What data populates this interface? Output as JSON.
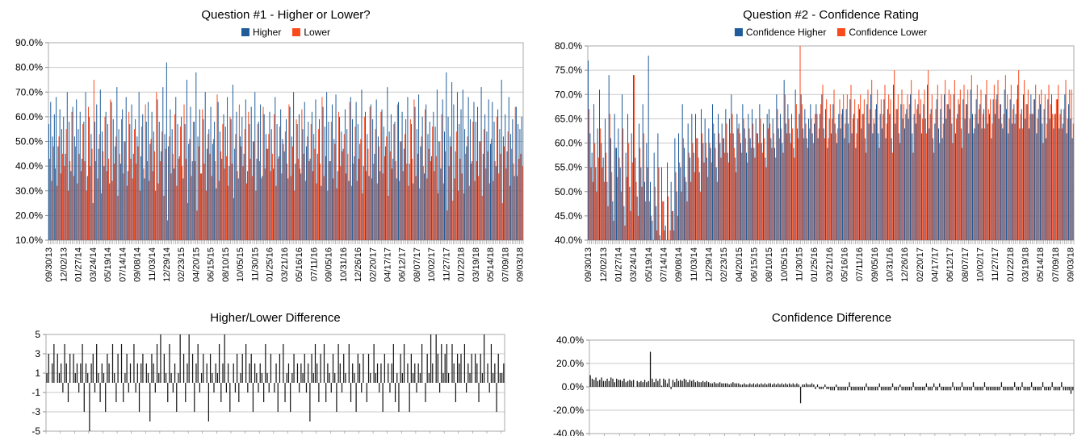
{
  "page": {
    "background": "#ffffff"
  },
  "colors": {
    "higher_series": "#1F5C99",
    "lower_series": "#F94A1D",
    "diff_series": "#141414",
    "gridline": "#c9c9c9",
    "plot_frame": "#a8a8a8",
    "tick_mark": "#8c8c8c",
    "text": "#000000"
  },
  "x_tick_labels": [
    "09/30/13",
    "12/02/13",
    "01/27/14",
    "03/24/14",
    "05/19/14",
    "07/14/14",
    "09/08/14",
    "11/03/14",
    "12/29/14",
    "02/23/15",
    "04/20/15",
    "06/15/15",
    "08/10/15",
    "10/05/15",
    "11/30/15",
    "01/25/16",
    "03/21/16",
    "05/16/16",
    "07/11/16",
    "09/05/16",
    "10/31/16",
    "12/26/16",
    "02/20/17",
    "04/17/17",
    "06/12/17",
    "08/07/17",
    "10/02/17",
    "11/27/17",
    "01/22/18",
    "03/19/18",
    "05/14/18",
    "07/09/18",
    "09/03/18"
  ],
  "x_tick_every_n_bars": 8,
  "chart_data": [
    {
      "type": "bar",
      "variant": "grouped",
      "title": "Question #1 - Higher or Lower?",
      "legend_position": "top",
      "grid": true,
      "ylim": [
        10,
        90
      ],
      "yticks": [
        90,
        80,
        70,
        60,
        50,
        40,
        30,
        20,
        10
      ],
      "ytick_format": "percent_1dp",
      "x_is_weekly_dates": true,
      "series": [
        {
          "name": "Higher",
          "color_key": "higher_series",
          "unit": "%",
          "values": [
            57,
            66,
            52,
            61,
            68,
            48,
            63,
            55,
            60,
            45,
            70,
            58,
            38,
            64,
            52,
            67,
            55,
            62,
            43,
            58,
            70,
            36,
            60,
            53,
            25,
            58,
            65,
            47,
            71,
            54,
            40,
            62,
            57,
            33,
            66,
            59,
            48,
            72,
            55,
            41,
            63,
            50,
            68,
            38,
            57,
            65,
            45,
            59,
            52,
            70,
            44,
            61,
            35,
            58,
            66,
            49,
            62,
            54,
            30,
            67,
            58,
            46,
            72,
            53,
            82,
            48,
            63,
            55,
            39,
            68,
            57,
            44,
            60,
            35,
            57,
            75,
            49,
            64,
            42,
            58,
            78,
            52,
            63,
            37,
            59,
            70,
            47,
            55,
            64,
            49,
            58,
            31,
            66,
            54,
            43,
            61,
            56,
            68,
            40,
            59,
            73,
            47,
            62,
            35,
            52,
            60,
            45,
            67,
            38,
            57,
            64,
            50,
            70,
            43,
            58,
            65,
            36,
            61,
            53,
            47,
            62,
            55,
            39,
            68,
            57,
            44,
            63,
            51,
            46,
            59,
            35,
            64,
            52,
            70,
            41,
            57,
            61,
            37,
            55,
            66,
            48,
            58,
            43,
            62,
            53,
            67,
            45,
            59,
            32,
            64,
            56,
            70,
            58,
            42,
            65,
            51,
            69,
            38,
            60,
            54,
            47,
            63,
            55,
            34,
            68,
            59,
            44,
            66,
            57,
            49,
            71,
            40,
            62,
            53,
            36,
            65,
            59,
            45,
            67,
            52,
            38,
            63,
            56,
            48,
            72,
            54,
            61,
            43,
            58,
            35,
            66,
            50,
            62,
            47,
            59,
            68,
            41,
            57,
            33,
            64,
            55,
            69,
            48,
            60,
            37,
            65,
            53,
            58,
            44,
            62,
            56,
            71,
            50,
            39,
            67,
            54,
            78,
            60,
            52,
            74,
            65,
            46,
            70,
            57,
            63,
            71,
            55,
            48,
            68,
            59,
            42,
            66,
            58,
            64,
            50,
            72,
            45,
            61,
            54,
            67,
            49,
            66,
            58,
            40,
            63,
            55,
            75,
            52,
            61,
            46,
            68,
            53,
            59,
            36,
            64,
            57,
            55,
            60
          ]
        },
        {
          "name": "Lower",
          "color_key": "lower_series",
          "unit": "%",
          "derived_from": "100 - Higher"
        }
      ]
    },
    {
      "type": "bar",
      "variant": "grouped",
      "title": "Question #2 - Confidence Rating",
      "legend_position": "top",
      "grid": true,
      "ylim": [
        40,
        80
      ],
      "yticks": [
        80,
        75,
        70,
        65,
        60,
        55,
        50,
        45,
        40
      ],
      "ytick_format": "percent_1dp",
      "x_is_weekly_dates": true,
      "series": [
        {
          "name": "Confidence Higher",
          "color_key": "higher_series",
          "unit": "%",
          "values": [
            77,
            62,
            58,
            68,
            55,
            63,
            71,
            60,
            57,
            65,
            52,
            74,
            61,
            48,
            66,
            59,
            63,
            55,
            70,
            47,
            58,
            66,
            51,
            62,
            74,
            57,
            49,
            64,
            55,
            68,
            52,
            60,
            78,
            52,
            44,
            58,
            47,
            62,
            41,
            55,
            48,
            43,
            56,
            40,
            52,
            46,
            61,
            50,
            62,
            55,
            68,
            59,
            52,
            64,
            57,
            66,
            58,
            66,
            61,
            54,
            67,
            60,
            65,
            57,
            63,
            59,
            68,
            62,
            55,
            66,
            60,
            64,
            61,
            67,
            58,
            65,
            70,
            62,
            57,
            66,
            64,
            60,
            68,
            63,
            58,
            66,
            61,
            67,
            59,
            65,
            62,
            68,
            60,
            64,
            57,
            66,
            67,
            61,
            65,
            59,
            70,
            63,
            66,
            60,
            73,
            64,
            68,
            62,
            66,
            59,
            71,
            63,
            66,
            70,
            63,
            67,
            61,
            65,
            68,
            62,
            64,
            68,
            61,
            66,
            70,
            63,
            67,
            59,
            65,
            62,
            68,
            64,
            60,
            66,
            63,
            67,
            61,
            67,
            64,
            69,
            62,
            66,
            59,
            65,
            67,
            63,
            66,
            61,
            68,
            64,
            70,
            62,
            64,
            68,
            62,
            66,
            63,
            69,
            61,
            67,
            66,
            61,
            72,
            64,
            67,
            62,
            68,
            65,
            63,
            67,
            65,
            70,
            62,
            66,
            64,
            68,
            66,
            62,
            68,
            65,
            72,
            63,
            67,
            61,
            64,
            69,
            63,
            67,
            61,
            70,
            65,
            68,
            67,
            64,
            70,
            62,
            66,
            68,
            63,
            69,
            65,
            68,
            62,
            71,
            66,
            63,
            69,
            64,
            68,
            63,
            67,
            70,
            64,
            66,
            61,
            69,
            66,
            70,
            65,
            68,
            63,
            71,
            67,
            62,
            69,
            64,
            68,
            66,
            72,
            63,
            67,
            70,
            65,
            68,
            63,
            70,
            66,
            69,
            62,
            67,
            68,
            64,
            67,
            61,
            69,
            65,
            70,
            63,
            66,
            69,
            63,
            67,
            64,
            70,
            62,
            68,
            65,
            61
          ]
        },
        {
          "name": "Confidence Lower",
          "color_key": "lower_series",
          "unit": "%",
          "values": [
            67,
            55,
            52,
            60,
            50,
            57,
            63,
            55,
            52,
            58,
            47,
            66,
            54,
            44,
            59,
            53,
            57,
            50,
            63,
            43,
            53,
            60,
            46,
            56,
            74,
            52,
            45,
            59,
            51,
            62,
            48,
            55,
            48,
            45,
            40,
            51,
            42,
            55,
            40,
            48,
            42,
            40,
            49,
            42,
            46,
            42,
            54,
            45,
            56,
            50,
            61,
            53,
            48,
            58,
            52,
            60,
            54,
            61,
            57,
            50,
            62,
            56,
            60,
            53,
            60,
            56,
            64,
            59,
            52,
            62,
            57,
            61,
            58,
            64,
            56,
            62,
            66,
            59,
            54,
            63,
            62,
            58,
            65,
            61,
            56,
            63,
            59,
            64,
            57,
            62,
            60,
            65,
            58,
            61,
            55,
            63,
            64,
            59,
            62,
            57,
            67,
            61,
            63,
            58,
            70,
            62,
            65,
            60,
            63,
            57,
            68,
            61,
            80,
            68,
            61,
            64,
            59,
            63,
            65,
            60,
            66,
            66,
            63,
            68,
            72,
            61,
            69,
            61,
            68,
            65,
            71,
            62,
            63,
            69,
            66,
            70,
            64,
            70,
            60,
            72,
            65,
            69,
            62,
            68,
            70,
            66,
            69,
            58,
            71,
            67,
            73,
            65,
            67,
            71,
            59,
            69,
            66,
            72,
            64,
            70,
            69,
            58,
            75,
            67,
            70,
            60,
            71,
            68,
            66,
            70,
            68,
            73,
            58,
            69,
            67,
            71,
            69,
            65,
            71,
            62,
            75,
            66,
            70,
            58,
            67,
            72,
            60,
            70,
            64,
            73,
            68,
            71,
            70,
            60,
            73,
            65,
            69,
            71,
            59,
            72,
            68,
            71,
            65,
            74,
            62,
            66,
            72,
            67,
            71,
            66,
            63,
            73,
            67,
            69,
            64,
            72,
            69,
            73,
            68,
            64,
            66,
            74,
            70,
            65,
            72,
            67,
            64,
            69,
            75,
            66,
            63,
            73,
            68,
            71,
            66,
            66,
            69,
            72,
            65,
            70,
            71,
            60,
            70,
            64,
            72,
            68,
            66,
            66,
            69,
            72,
            66,
            63,
            67,
            73,
            65,
            71,
            71,
            64
          ]
        }
      ]
    },
    {
      "type": "bar",
      "variant": "single",
      "title": "Higher/Lower Difference",
      "grid": true,
      "ylim": [
        -5,
        5
      ],
      "yticks": [
        5,
        3,
        1,
        -1,
        -3,
        -5
      ],
      "ytick_format": "integer",
      "x_is_weekly_dates": true,
      "series": [
        {
          "name": "Higher/Lower Difference",
          "color_key": "diff_series",
          "unit": "count",
          "values": [
            1,
            3,
            0,
            2,
            4,
            0,
            3,
            1,
            2,
            -1,
            4,
            2,
            -2,
            3,
            0,
            3,
            1,
            2,
            -1,
            2,
            4,
            -3,
            2,
            1,
            -5,
            2,
            3,
            -1,
            4,
            1,
            -2,
            2,
            1,
            -3,
            3,
            2,
            0,
            4,
            1,
            -2,
            3,
            0,
            4,
            -2,
            1,
            3,
            -1,
            2,
            0,
            4,
            -1,
            2,
            -3,
            2,
            3,
            0,
            2,
            1,
            -4,
            3,
            2,
            -1,
            4,
            1,
            5,
            0,
            3,
            1,
            -2,
            4,
            1,
            -1,
            2,
            -3,
            1,
            5,
            0,
            3,
            -2,
            2,
            5,
            0,
            3,
            -3,
            2,
            4,
            -1,
            1,
            3,
            0,
            2,
            -4,
            3,
            1,
            -1,
            2,
            1,
            4,
            -2,
            2,
            5,
            -1,
            2,
            -3,
            0,
            2,
            -1,
            3,
            -2,
            1,
            3,
            0,
            4,
            -1,
            2,
            3,
            -3,
            2,
            1,
            -1,
            2,
            1,
            -2,
            4,
            1,
            -1,
            3,
            0,
            -1,
            2,
            -3,
            3,
            0,
            4,
            -2,
            1,
            2,
            -3,
            1,
            3,
            0,
            2,
            -1,
            2,
            1,
            3,
            -1,
            2,
            -4,
            3,
            1,
            4,
            2,
            -2,
            3,
            0,
            4,
            -2,
            2,
            1,
            -1,
            3,
            1,
            -3,
            4,
            2,
            -1,
            3,
            1,
            0,
            4,
            -2,
            2,
            1,
            -3,
            3,
            2,
            -1,
            3,
            0,
            -2,
            3,
            1,
            0,
            4,
            1,
            2,
            -1,
            2,
            -3,
            3,
            0,
            2,
            -1,
            2,
            4,
            -2,
            1,
            -3,
            3,
            1,
            4,
            0,
            2,
            -3,
            3,
            1,
            2,
            -1,
            2,
            1,
            4,
            0,
            -2,
            3,
            1,
            5,
            2,
            0,
            5,
            3,
            -1,
            4,
            1,
            3,
            4,
            1,
            0,
            4,
            2,
            -2,
            3,
            2,
            3,
            0,
            4,
            -1,
            2,
            1,
            3,
            0,
            3,
            2,
            -2,
            3,
            1,
            5,
            0,
            2,
            -1,
            4,
            1,
            2,
            -3,
            3,
            1,
            1,
            2
          ]
        }
      ]
    },
    {
      "type": "bar",
      "variant": "single",
      "title": "Confidence Difference",
      "grid": true,
      "ylim": [
        -40,
        40
      ],
      "yticks": [
        40,
        20,
        0,
        -20,
        -40
      ],
      "ytick_format": "percent_1dp",
      "x_is_weekly_dates": true,
      "series": [
        {
          "name": "Confidence Difference",
          "color_key": "diff_series",
          "unit": "%",
          "derived_from": "Confidence Higher - Confidence Lower"
        }
      ]
    }
  ]
}
